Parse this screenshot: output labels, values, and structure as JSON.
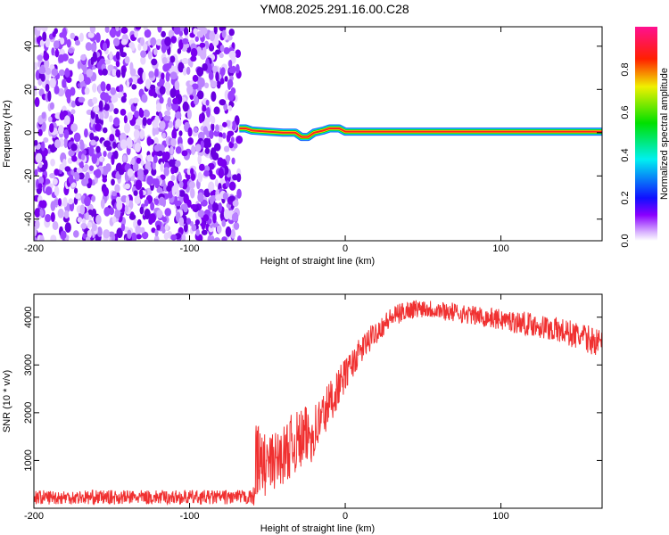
{
  "title": "YM08.2025.291.16.00.C28",
  "chart_data": [
    {
      "type": "heatmap",
      "xlabel": "Height of straight line (km)",
      "ylabel": "Frequency (Hz)",
      "xlim": [
        -200,
        165
      ],
      "ylim": [
        -50,
        49
      ],
      "xticks": [
        -200,
        -100,
        0,
        100
      ],
      "yticks": [
        -40,
        -20,
        0,
        20,
        40
      ],
      "noise_region_x": [
        -200,
        -68
      ],
      "ridge": {
        "x": [
          -68,
          -64,
          -60,
          -50,
          -40,
          -32,
          -28,
          -24,
          -20,
          -14,
          -10,
          -4,
          0,
          20,
          60,
          100,
          165
        ],
        "freq": [
          2,
          2,
          1,
          0.5,
          0,
          0,
          -2,
          -2,
          0,
          1,
          2,
          2,
          0.5,
          0.5,
          0.5,
          0.5,
          0.5
        ]
      },
      "colorbar": {
        "label": "Normalized spectral amplitude",
        "range": [
          0,
          1
        ],
        "ticks": [
          "0.0",
          "0.2",
          "0.4",
          "0.6",
          "0.8"
        ]
      }
    },
    {
      "type": "line",
      "xlabel": "Height of straight line (km)",
      "ylabel": "SNR (10 * v/v)",
      "xlim": [
        -200,
        165
      ],
      "ylim": [
        0,
        4480
      ],
      "xticks": [
        -200,
        -100,
        0,
        100
      ],
      "yticks": [
        1000,
        2000,
        3000,
        4000
      ],
      "color": "#f03030",
      "series": {
        "name": "SNR",
        "x": [
          -200,
          -150,
          -100,
          -60,
          -58,
          -57,
          -55,
          -50,
          -45,
          -40,
          -35,
          -30,
          -25,
          -20,
          -15,
          -10,
          -5,
          0,
          5,
          10,
          20,
          30,
          40,
          50,
          60,
          80,
          100,
          120,
          140,
          165
        ],
        "mean": [
          230,
          230,
          230,
          230,
          260,
          1500,
          900,
          900,
          1000,
          1100,
          1300,
          1400,
          1500,
          1600,
          1900,
          2200,
          2500,
          2800,
          3050,
          3300,
          3700,
          4000,
          4150,
          4200,
          4150,
          4050,
          3950,
          3850,
          3700,
          3450
        ],
        "spread": [
          150,
          150,
          150,
          150,
          250,
          1200,
          700,
          650,
          600,
          600,
          650,
          650,
          650,
          600,
          550,
          500,
          400,
          350,
          300,
          300,
          250,
          220,
          200,
          200,
          200,
          200,
          220,
          250,
          280,
          300
        ]
      }
    }
  ]
}
